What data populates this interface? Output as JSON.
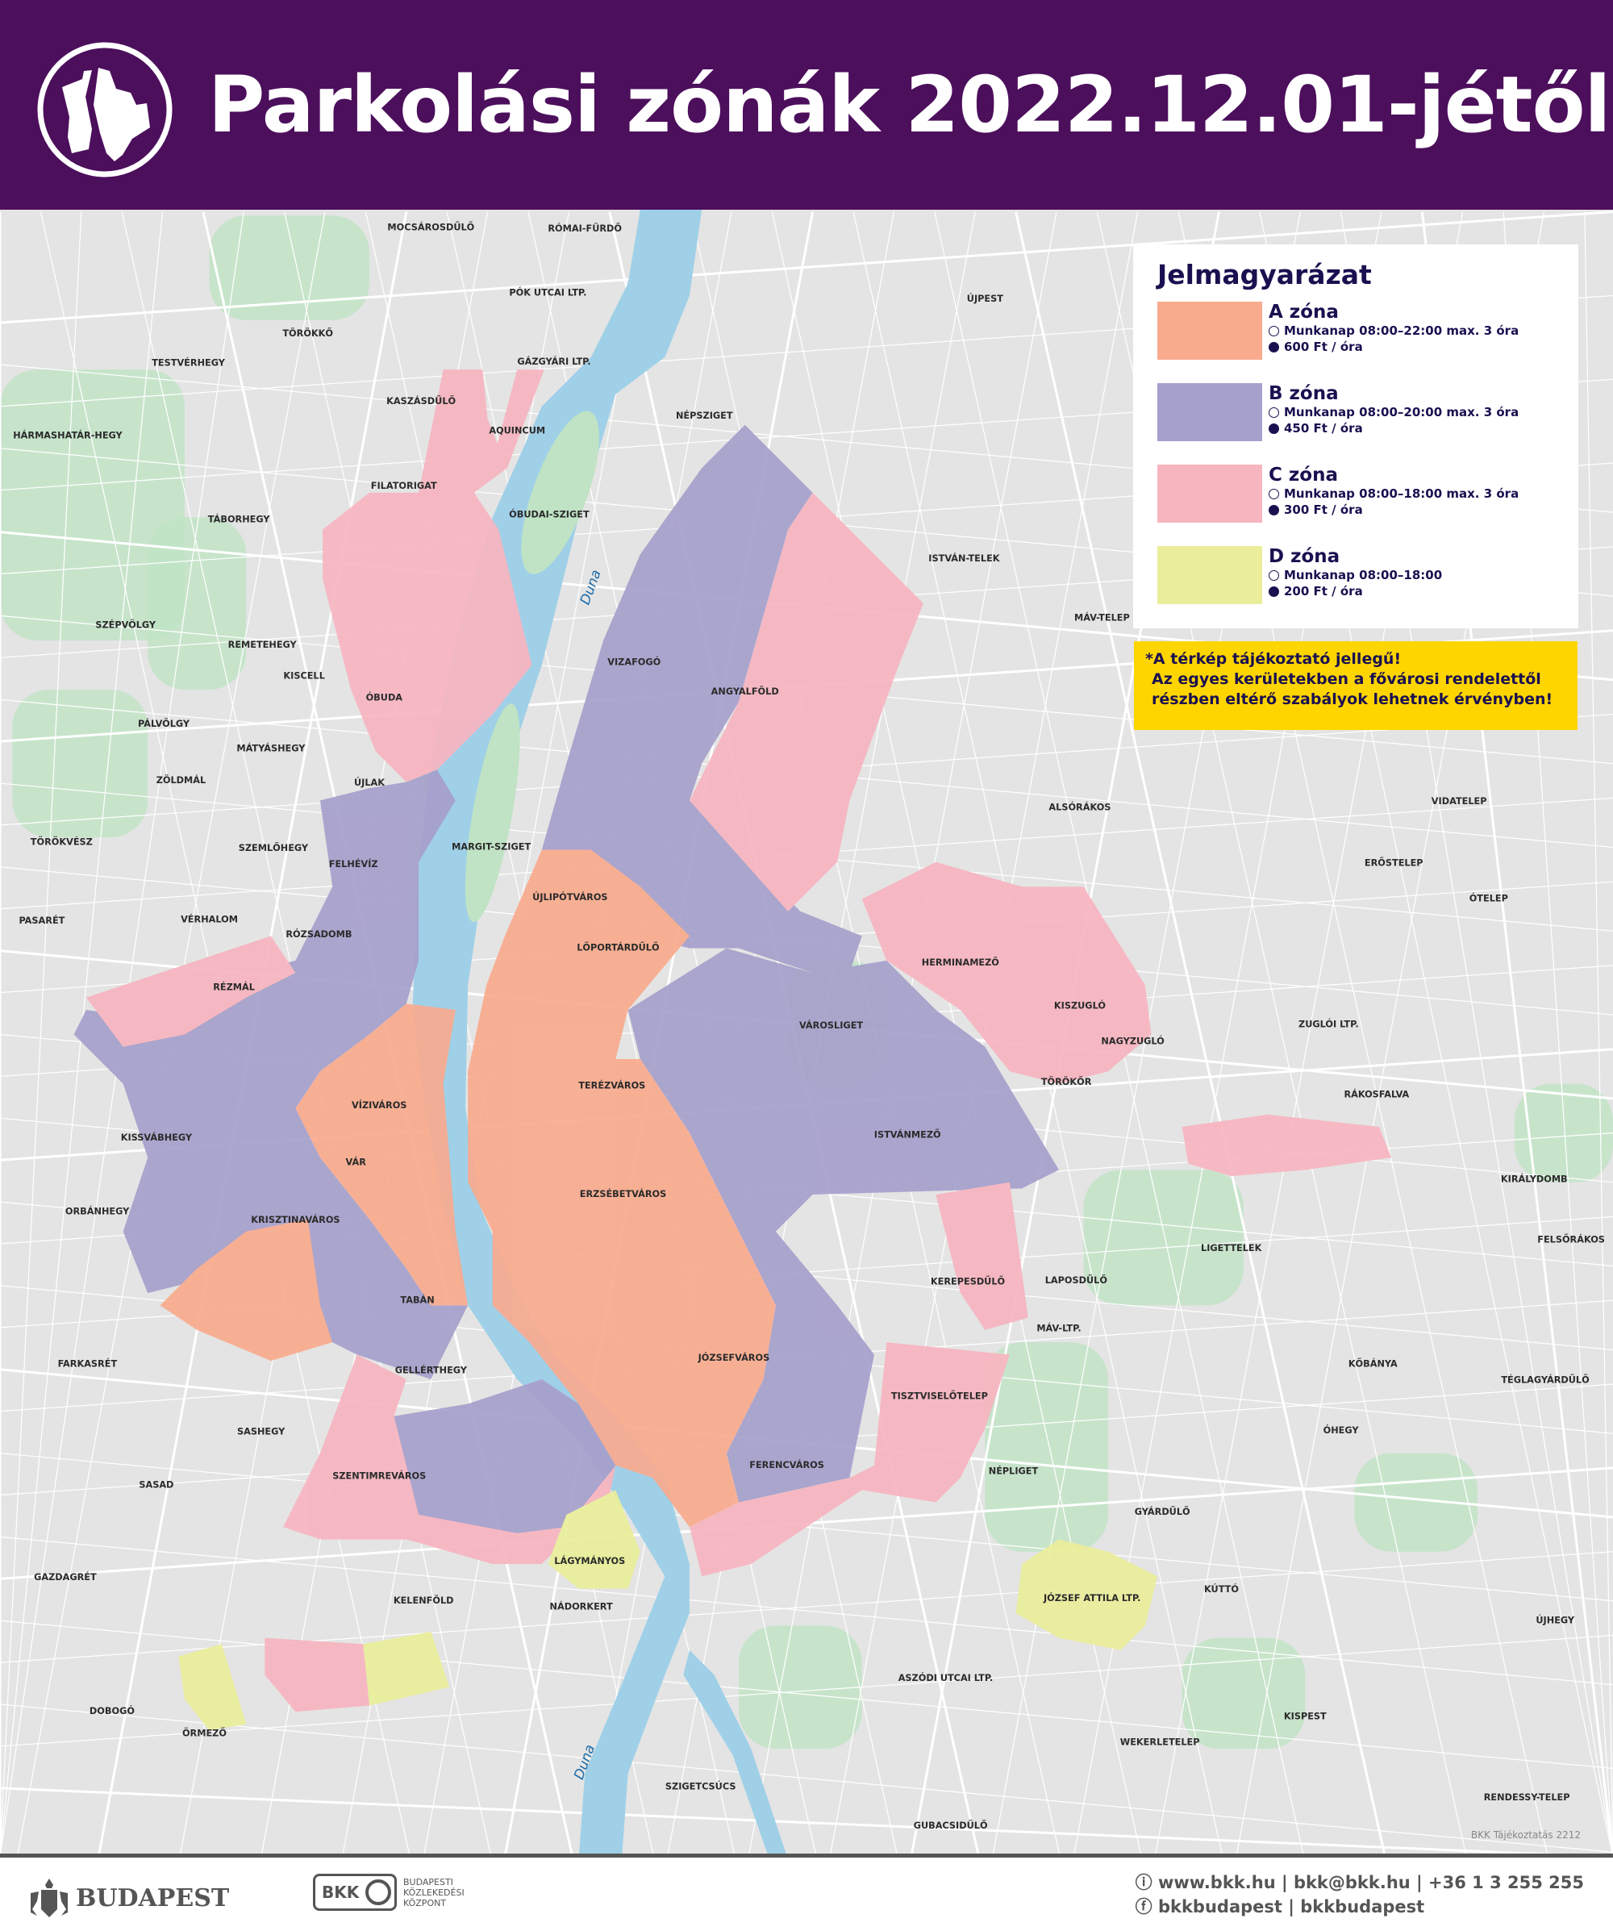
{
  "header": {
    "title": "Parkolási zónák 2022.12.01-jétől",
    "brand_color": "#4c0f5c"
  },
  "legend": {
    "title": "Jelmagyarázat",
    "zones": [
      {
        "name": "A zóna",
        "hours": "Munkanap 08:00–22:00 max. 3 óra",
        "price": "600 Ft / óra",
        "color": "#f9ab8e"
      },
      {
        "name": "B zóna",
        "hours": "Munkanap 08:00–20:00 max. 3 óra",
        "price": "450 Ft / óra",
        "color": "#a6a0cc"
      },
      {
        "name": "C zóna",
        "hours": "Munkanap 08:00–18:00 max. 3 óra",
        "price": "300 Ft / óra",
        "color": "#f7b5c0"
      },
      {
        "name": "D zóna",
        "hours": "Munkanap 08:00–18:00",
        "price": "200 Ft / óra",
        "color": "#eaee9a"
      }
    ],
    "icons": [
      "clock-icon",
      "coin-icon"
    ]
  },
  "warning": {
    "lines": [
      "*A térkép tájékoztató jellegű!",
      "Az egyes kerületekben a fővárosi rendelettől",
      "részben eltérő szabályok lehetnek érvényben!"
    ],
    "color": "#ffd500"
  },
  "map": {
    "river_name": "Duna",
    "places": [
      "MOCSÁROSDŰLŐ",
      "RÓMAI-FÜRDŐ",
      "PÓK UTCAI LTP.",
      "ÚJPEST",
      "TÖRÖKKŐ",
      "TESTVÉRHEGY",
      "GÁZGYÁRI LTP.",
      "KASZÁSDŰLŐ",
      "AQUINCUM",
      "NÉPSZIGET",
      "HÁRMASHATÁR-HEGY",
      "FILATORIGAT",
      "ÓBUDAI-SZIGET",
      "TÁBORHEGY",
      "ISTVÁN-TELEK",
      "MÁV-TELEP",
      "SZÉPVÖLGY",
      "VIZAFOGÓ",
      "ANGYALFÖLD",
      "REMETEHEGY",
      "KISCELL",
      "ÓBUDA",
      "PÁLVÖLGY",
      "MÁTYÁSHEGY",
      "ZÖLDMÁL",
      "ÚJLAK",
      "ALSÓRÁKOS",
      "VIDATELEP",
      "TÖRÖKVÉSZ",
      "SZEMLŐHEGY",
      "MARGIT-SZIGET",
      "FELHÉVÍZ",
      "ERŐSTELEP",
      "ÚJLIPÓTVÁROS",
      "ÓTELEP",
      "PASARÉT",
      "VÉRHALOM",
      "RÓZSADOMB",
      "LŐPORTÁRDŰLŐ",
      "HERMINAMEZŐ",
      "RÉZMÁL",
      "KISZUGLÓ",
      "VÁROSLIGET",
      "ZUGLÓI LTP.",
      "NAGYZUGLÓ",
      "TERÉZVÁROS",
      "TÖRÖKŐR",
      "RÁKOSFALVA",
      "VÍZIVÁROS",
      "KISSVÁBHEGY",
      "ISTVÁNMEZŐ",
      "VÁR",
      "ERZSÉBETVÁROS",
      "KIRÁLYDOMB",
      "ORBÁNHEGY",
      "KRISZTINAVÁROS",
      "FELSŐRÁKOS",
      "LIGETTELEK",
      "KEREPESDŰLŐ",
      "LAPOSDŰLŐ",
      "TABÁN",
      "MÁV-LTP.",
      "FARKASRÉT",
      "GELLÉRTHEGY",
      "JÓZSEFVÁROS",
      "KŐBÁNYA",
      "TÉGLAGYÁRDŰLŐ",
      "TISZTVISELŐTELEP",
      "SASHEGY",
      "ÓHEGY",
      "FERENCVÁROS",
      "NÉPLIGET",
      "SASAD",
      "SZENTIMREVÁROS",
      "GYÁRDŰLŐ",
      "LÁGYMÁNYOS",
      "GAZDAGRÉT",
      "KELENFÖLD",
      "NÁDORKERT",
      "JÓZSEF ATTILA LTP.",
      "KÚTTÓ",
      "ÚJHEGY",
      "ASZÓDI UTCAI LTP.",
      "DOBOGÓ",
      "KISPEST",
      "ÖRMEZŐ",
      "WEKERLETELEP",
      "SZIGETCSÚCS",
      "RENDESSY-TELEP",
      "GUBACSIDŰLŐ"
    ],
    "credit": "BKK Tájékoztatás 2212",
    "colors": {
      "background": "#e4e4e4",
      "park": "#bfe3c4",
      "water": "#9fd0e8",
      "road": "#ffffff"
    }
  },
  "footer": {
    "city": "BUDAPEST",
    "bkk_short": "BKK",
    "bkk_full": [
      "BUDAPESTI",
      "KÖZLEKEDÉSI",
      "KÖZPONT"
    ],
    "contact_line": "www.bkk.hu | bkk@bkk.hu | +36 1 3 255 255",
    "social_line": "bkkbudapest | bkkbudapest"
  }
}
